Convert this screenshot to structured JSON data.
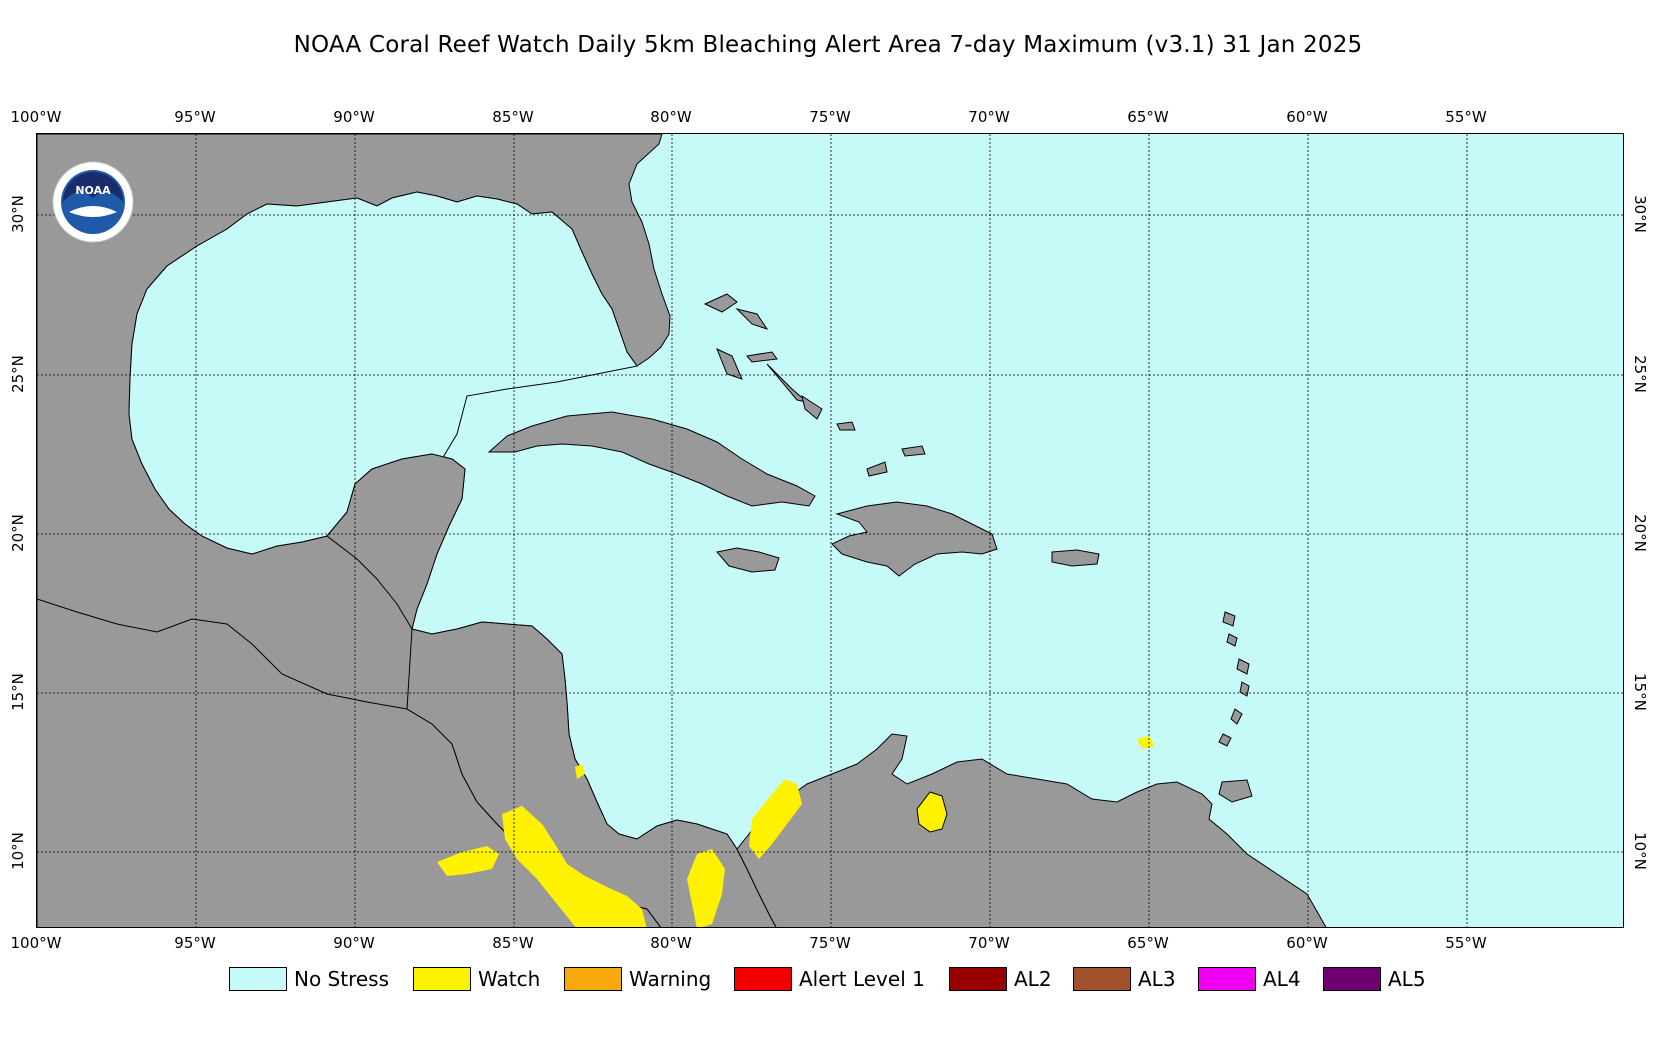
{
  "title": "NOAA Coral Reef Watch Daily 5km Bleaching Alert Area 7-day Maximum  (v3.1)   31 Jan 2025",
  "map": {
    "ocean_color": "#C6FAF9",
    "land_color": "#999999",
    "watch_color": "#FFF200",
    "lon_ticks": [
      "100°W",
      "95°W",
      "90°W",
      "85°W",
      "80°W",
      "75°W",
      "70°W",
      "65°W",
      "60°W",
      "55°W"
    ],
    "lat_ticks": [
      "30°N",
      "25°N",
      "20°N",
      "15°N",
      "10°N"
    ],
    "logo_text": "NOAA"
  },
  "legend": [
    {
      "label": "No Stress",
      "color": "#C6FAF9"
    },
    {
      "label": "Watch",
      "color": "#FFF200"
    },
    {
      "label": "Warning",
      "color": "#F9A80D"
    },
    {
      "label": "Alert Level 1",
      "color": "#F20000"
    },
    {
      "label": "AL2",
      "color": "#960000"
    },
    {
      "label": "AL3",
      "color": "#A0522D"
    },
    {
      "label": "AL4",
      "color": "#F000F0"
    },
    {
      "label": "AL5",
      "color": "#700070"
    }
  ]
}
